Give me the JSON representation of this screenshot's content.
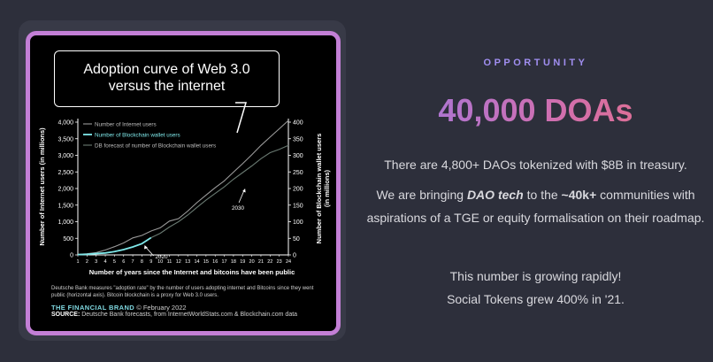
{
  "chart_data": {
    "type": "line",
    "title": "Adoption curve of Web 3.0 versus the internet",
    "title_lines": [
      "Adoption curve of Web 3.0",
      "versus the internet"
    ],
    "xlabel": "Number of years since the Internet and bitcoins have been public",
    "ylabel": "Number of Internet users (in millions)",
    "y2label": "Number of Blockchain wallet users (in millions)",
    "x": [
      1,
      2,
      3,
      4,
      5,
      6,
      7,
      8,
      9,
      10,
      11,
      12,
      13,
      14,
      15,
      16,
      17,
      18,
      19,
      20,
      21,
      22,
      23,
      24
    ],
    "xlim": [
      1,
      24
    ],
    "ylim": [
      0,
      4000
    ],
    "y2lim": [
      0,
      400
    ],
    "yticks": [
      "0",
      "500",
      "1,000",
      "1,500",
      "2,000",
      "2,500",
      "3,000",
      "3,500",
      "4,000"
    ],
    "y2ticks": [
      "0",
      "50",
      "100",
      "150",
      "200",
      "250",
      "300",
      "350",
      "400"
    ],
    "series": [
      {
        "name": "Number of Internet users",
        "axis": "left",
        "color": "#9a9a9a",
        "x": [
          1,
          2,
          3,
          4,
          5,
          6,
          7,
          8,
          9,
          10,
          11,
          12,
          13,
          14,
          15,
          16,
          17,
          18,
          19,
          20,
          21,
          22,
          23,
          24
        ],
        "values": [
          16,
          36,
          70,
          147,
          248,
          361,
          513,
          587,
          719,
          817,
          1018,
          1093,
          1319,
          1574,
          1802,
          2023,
          2231,
          2494,
          2750,
          3017,
          3300,
          3550,
          3800,
          4050
        ]
      },
      {
        "name": "Number of Blockchain wallet users",
        "axis": "right",
        "color": "#7fe8ea",
        "x": [
          1,
          2,
          3,
          4,
          5,
          6,
          7,
          8,
          9
        ],
        "values": [
          1,
          2,
          4,
          6,
          10,
          16,
          24,
          34,
          52
        ]
      },
      {
        "name": "DB forecast of number of Blockchain wallet users",
        "axis": "right",
        "color": "#6a7a72",
        "x": [
          9,
          10,
          11,
          12,
          13,
          14,
          15,
          16,
          17,
          18,
          19,
          20,
          21,
          22,
          23,
          24
        ],
        "values": [
          52,
          65,
          84,
          100,
          120,
          143,
          165,
          185,
          205,
          228,
          248,
          268,
          290,
          308,
          318,
          330
        ]
      }
    ],
    "annotations": [
      {
        "text": "2020",
        "x": 8.3,
        "y": 8
      },
      {
        "text": "2030",
        "x": 18.4,
        "y": 152
      }
    ],
    "legend": "top-left",
    "grid": false,
    "note": "Deutsche Bank measures \"adoption rate\" by the number of users adopting internet and Bitcoins since they went public (horizontal axis). Bitcoin blockchain is a proxy for Web 3.0 users.",
    "brand": "THE FINANCIAL BRAND",
    "brand_date": "© February 2022",
    "source_label": "SOURCE:",
    "source": "Deutsche Bank forecasts, from InternetWorldStats.com & Blockchain.com data"
  },
  "right": {
    "eyebrow": "OPPORTUNITY",
    "headline": "40,000 DOAs",
    "p1": "There are 4,800+ DAOs tokenized with $8B in treasury.",
    "p2_a": "We are bringing ",
    "p2_b": "DAO tech",
    "p2_c": " to the ",
    "p2_d": "~40k+",
    "p2_e": " communities with aspirations of a TGE or equity formalisation on their roadmap.",
    "p3_line1": "This number is growing rapidly!",
    "p3_line2": "Social Tokens grew 400% in '21."
  },
  "colors": {
    "background": "#2d2f3b",
    "card_border": "#c37fd6",
    "accent_from": "#9a79e6",
    "accent_to": "#e86f80",
    "eyebrow": "#a08ef0"
  }
}
